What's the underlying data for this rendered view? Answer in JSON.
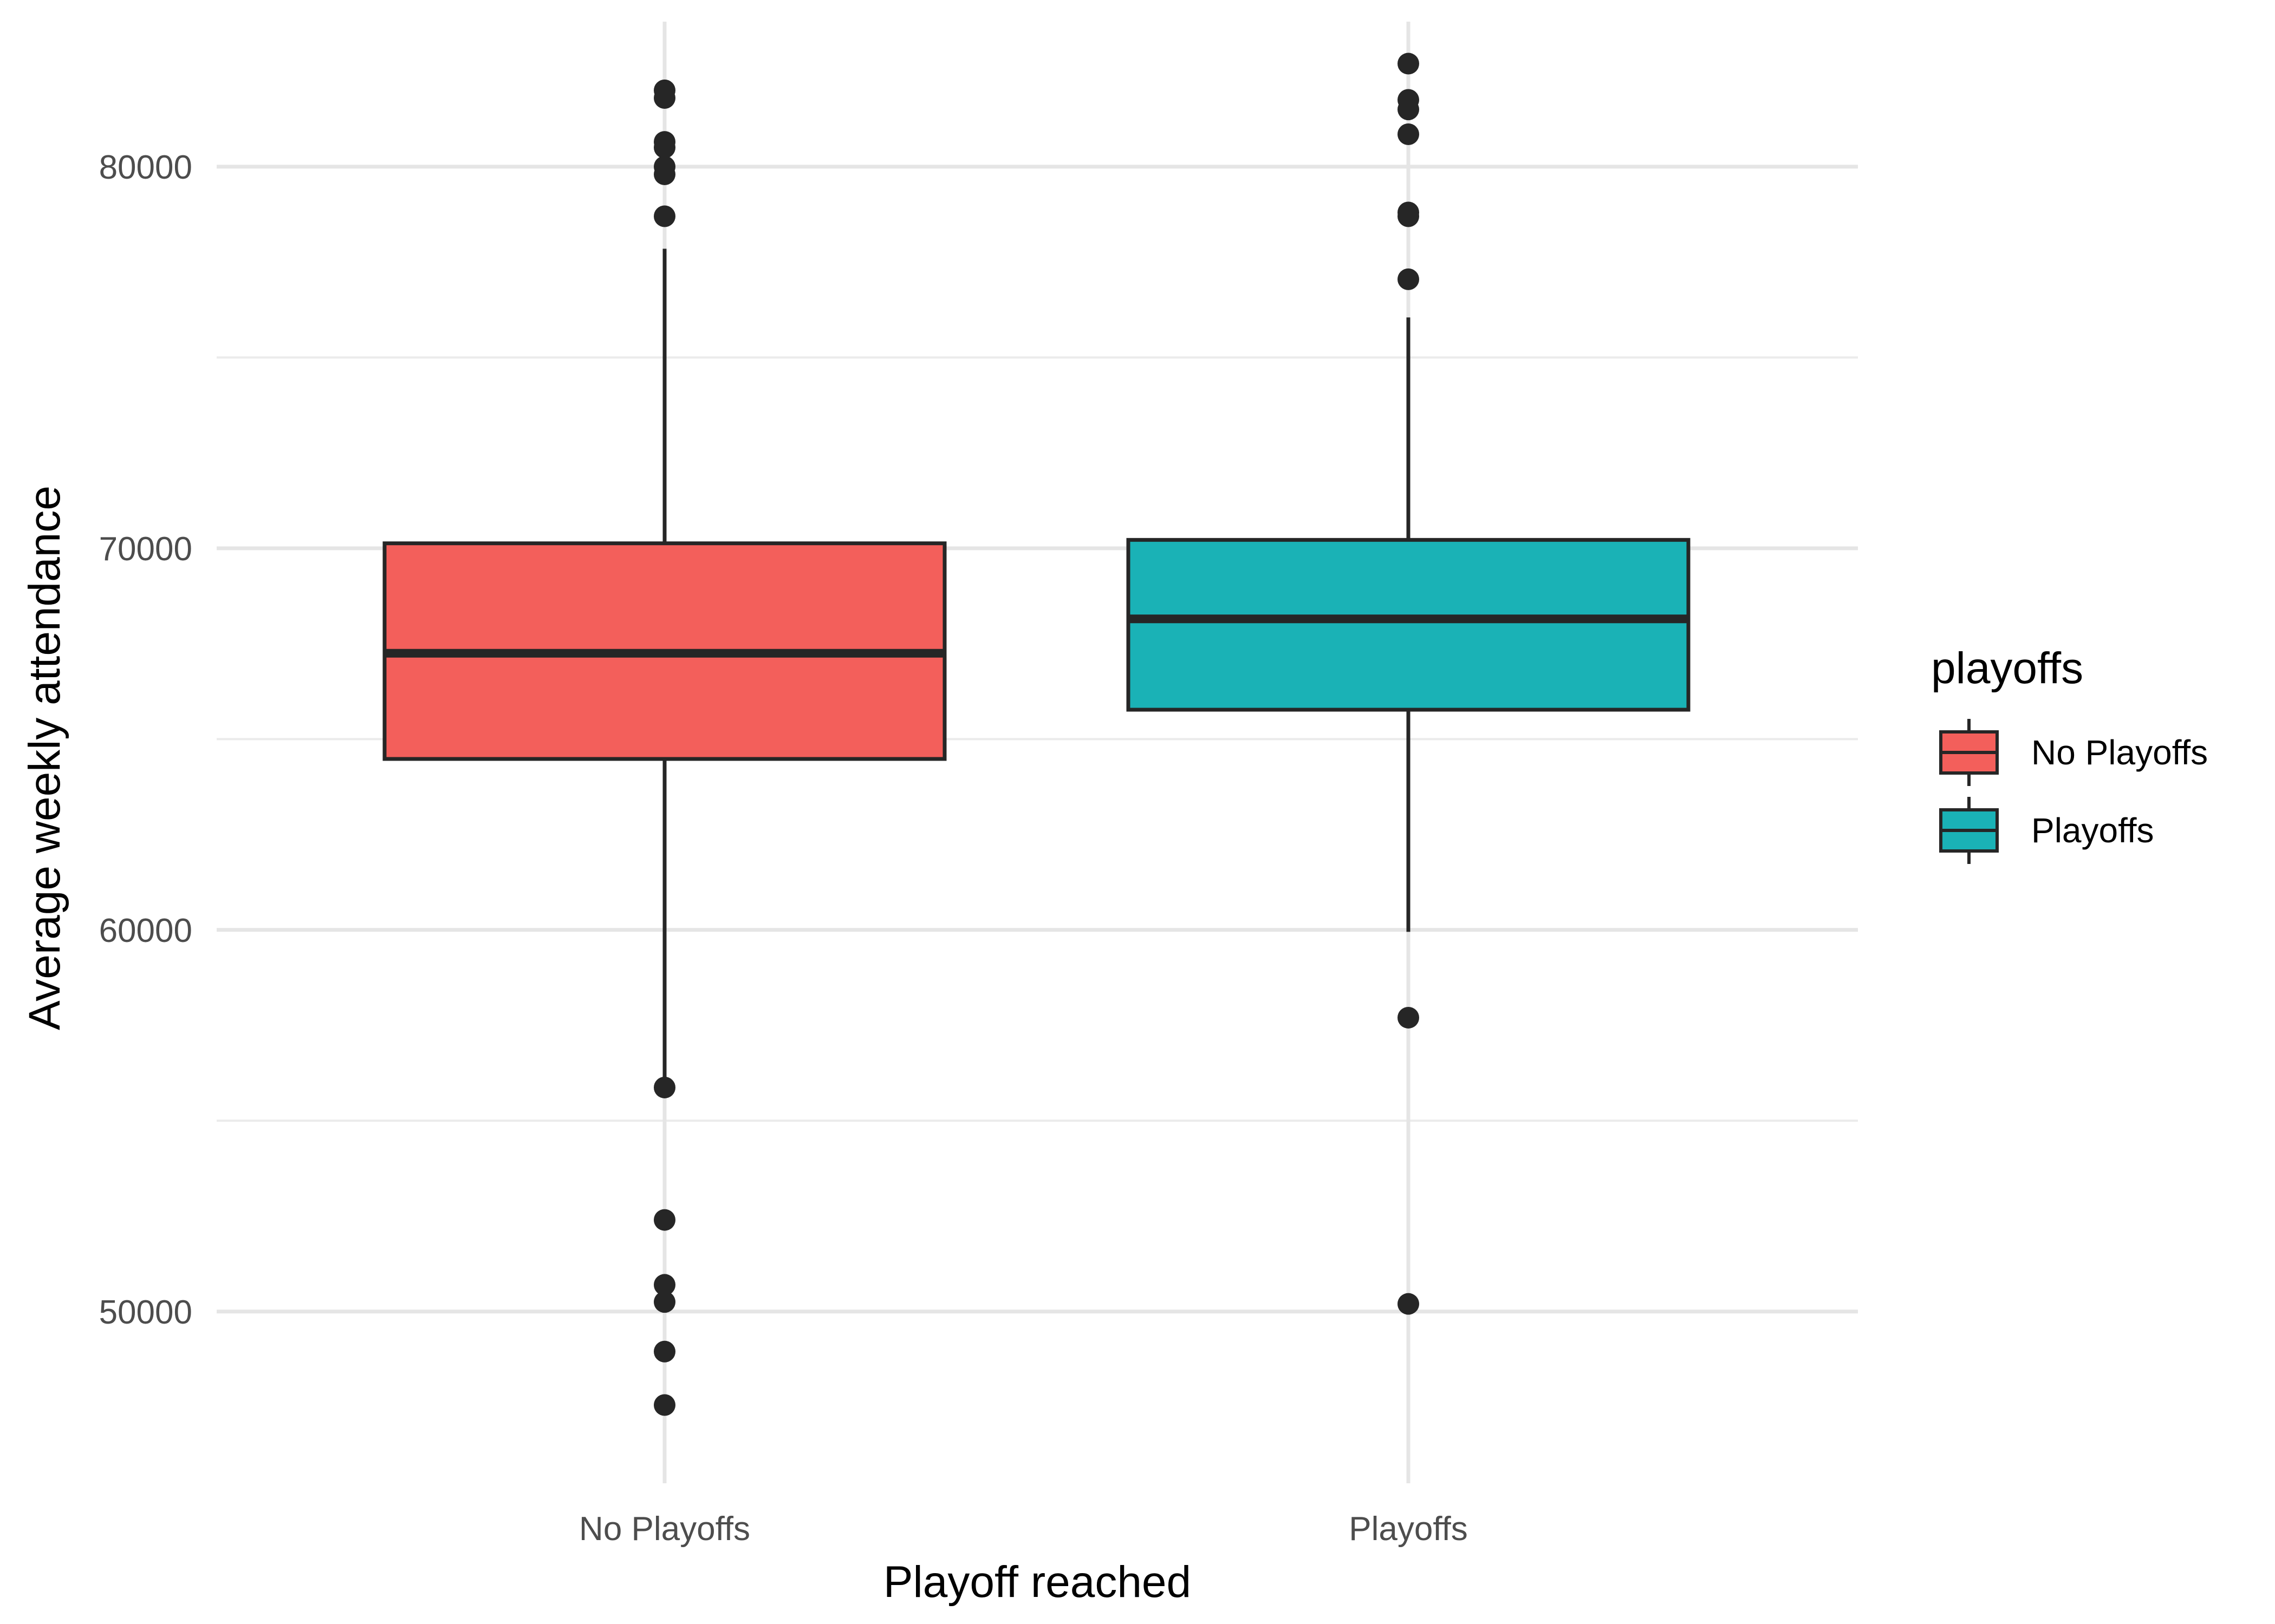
{
  "chart_data": {
    "type": "box",
    "xlabel": "Playoff reached",
    "ylabel": "Average weekly attendance",
    "ylim": [
      45500,
      83800
    ],
    "yticks": [
      50000,
      60000,
      70000,
      80000
    ],
    "grid": true,
    "legend_position": "right",
    "legend_title": "playoffs",
    "categories": [
      "No Playoffs",
      "Playoffs"
    ],
    "series": [
      {
        "name": "No Playoffs",
        "color": "#F35F5B",
        "whisker_low": 55870,
        "q1": 64480,
        "median": 67250,
        "q3": 70130,
        "whisker_high": 77850,
        "outliers": [
          82000,
          81800,
          80650,
          80500,
          80000,
          79800,
          78700,
          55870,
          52400,
          50700,
          50250,
          48950,
          47550
        ]
      },
      {
        "name": "Playoffs",
        "color": "#1AB2B6",
        "whisker_low": 59950,
        "q1": 65770,
        "median": 68150,
        "q3": 70220,
        "whisker_high": 76050,
        "outliers": [
          82700,
          81750,
          81500,
          80850,
          78800,
          78700,
          77050,
          57700,
          50200
        ]
      }
    ]
  }
}
